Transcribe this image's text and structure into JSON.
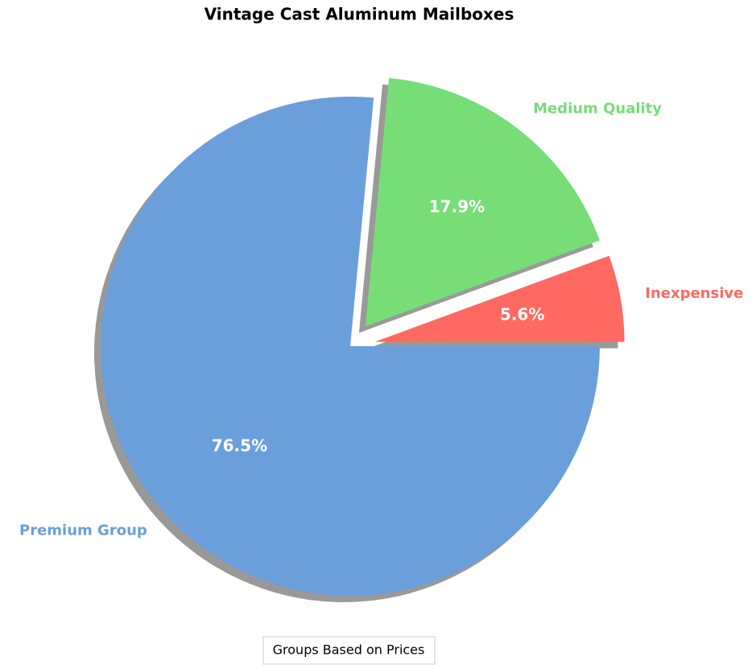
{
  "chart_data": {
    "type": "pie",
    "title": "Vintage Cast Aluminum Mailboxes",
    "categories": [
      "Inexpensive",
      "Medium Quality",
      "Premium Group"
    ],
    "values": [
      5.6,
      17.9,
      76.5
    ],
    "value_labels": [
      "5.6%",
      "17.9%",
      "76.5%"
    ],
    "colors": [
      "#ff6961",
      "#77dd77",
      "#6a9fdc"
    ],
    "explode": [
      0.1,
      0.1,
      0
    ],
    "shadow": true,
    "legend_title": "Groups Based on Prices"
  }
}
